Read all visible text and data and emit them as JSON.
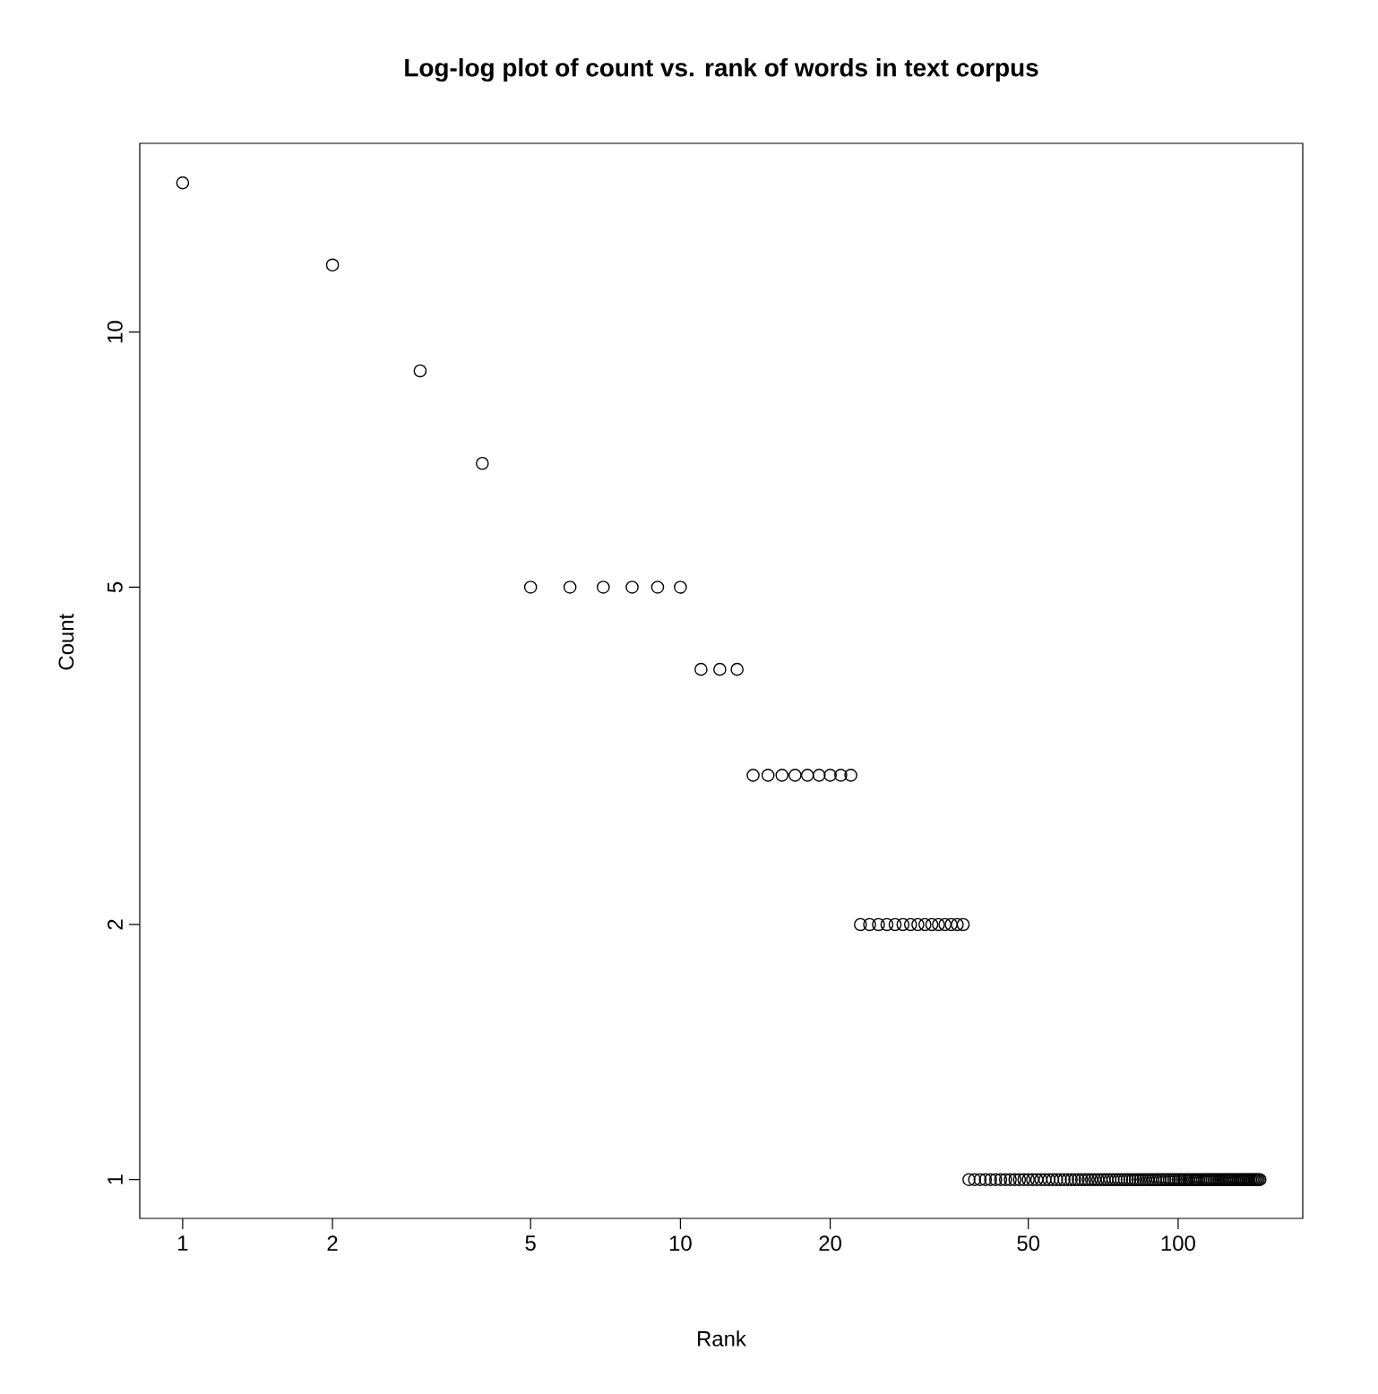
{
  "chart_data": {
    "type": "scatter",
    "title": "Log-log plot of count vs. rank of words in text corpus",
    "xlabel": "Rank",
    "ylabel": "Count",
    "x": [
      1,
      2,
      3,
      4,
      5,
      6,
      7,
      8,
      9,
      10,
      11,
      12,
      13,
      14,
      15,
      16,
      17,
      18,
      19,
      20,
      21,
      22,
      23,
      24,
      25,
      26,
      27,
      28,
      29,
      30,
      31,
      32,
      33,
      34,
      35,
      36,
      37,
      38,
      39,
      40,
      41,
      42,
      43,
      44,
      45,
      46,
      47,
      48,
      49,
      50,
      51,
      52,
      53,
      54,
      55,
      56,
      57,
      58,
      59,
      60,
      61,
      62,
      63,
      64,
      65,
      66,
      67,
      68,
      69,
      70,
      71,
      72,
      73,
      74,
      75,
      76,
      77,
      78,
      79,
      80,
      81,
      82,
      83,
      84,
      85,
      86,
      87,
      88,
      89,
      90,
      91,
      92,
      93,
      94,
      95,
      96,
      97,
      98,
      99,
      100,
      101,
      102,
      103,
      104,
      105,
      106,
      107,
      108,
      109,
      110,
      111,
      112,
      113,
      114,
      115,
      116,
      117,
      118,
      119,
      120,
      121,
      122,
      123,
      124,
      125,
      126,
      127,
      128,
      129,
      130,
      131,
      132,
      133,
      134,
      135,
      136,
      137,
      138,
      139,
      140,
      141,
      142,
      143,
      144,
      145,
      146
    ],
    "values": [
      15,
      12,
      9,
      7,
      5,
      5,
      5,
      5,
      5,
      5,
      4,
      4,
      4,
      3,
      3,
      3,
      3,
      3,
      3,
      3,
      3,
      3,
      2,
      2,
      2,
      2,
      2,
      2,
      2,
      2,
      2,
      2,
      2,
      2,
      2,
      2,
      2,
      1,
      1,
      1,
      1,
      1,
      1,
      1,
      1,
      1,
      1,
      1,
      1,
      1,
      1,
      1,
      1,
      1,
      1,
      1,
      1,
      1,
      1,
      1,
      1,
      1,
      1,
      1,
      1,
      1,
      1,
      1,
      1,
      1,
      1,
      1,
      1,
      1,
      1,
      1,
      1,
      1,
      1,
      1,
      1,
      1,
      1,
      1,
      1,
      1,
      1,
      1,
      1,
      1,
      1,
      1,
      1,
      1,
      1,
      1,
      1,
      1,
      1,
      1,
      1,
      1,
      1,
      1,
      1,
      1,
      1,
      1,
      1,
      1,
      1,
      1,
      1,
      1,
      1,
      1,
      1,
      1,
      1,
      1,
      1,
      1,
      1,
      1,
      1,
      1,
      1,
      1,
      1,
      1,
      1,
      1,
      1,
      1,
      1,
      1,
      1,
      1,
      1,
      1,
      1,
      1,
      1,
      1,
      1,
      1
    ],
    "color": "#000000",
    "marker": "circle",
    "log": "xy",
    "xlim": [
      0.82,
      178
    ],
    "ylim": [
      0.9,
      16.7
    ],
    "xticks": [
      1,
      2,
      5,
      10,
      20,
      50,
      100
    ],
    "yticks": [
      1,
      2,
      5,
      10
    ]
  }
}
